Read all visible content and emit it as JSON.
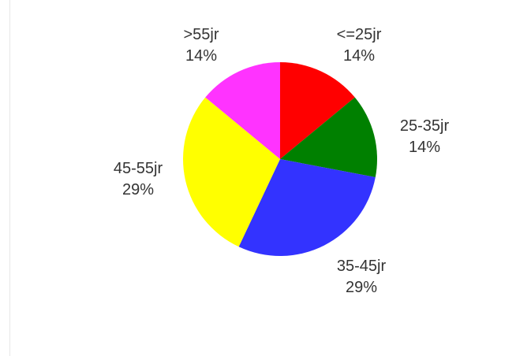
{
  "chart_data": {
    "type": "pie",
    "title": "",
    "slices": [
      {
        "label": "<=25jr",
        "percent_label": "14%",
        "value": 14,
        "color": "#ff0000"
      },
      {
        "label": "25-35jr",
        "percent_label": "14%",
        "value": 14,
        "color": "#008000"
      },
      {
        "label": "35-45jr",
        "percent_label": "29%",
        "value": 29,
        "color": "#3333ff"
      },
      {
        "label": "45-55jr",
        "percent_label": "29%",
        "value": 29,
        "color": "#ffff00"
      },
      {
        "label": ">55jr",
        "percent_label": "14%",
        "value": 14,
        "color": "#ff33ff"
      }
    ],
    "start_angle_deg": 0,
    "direction": "clockwise",
    "legend": "none"
  }
}
